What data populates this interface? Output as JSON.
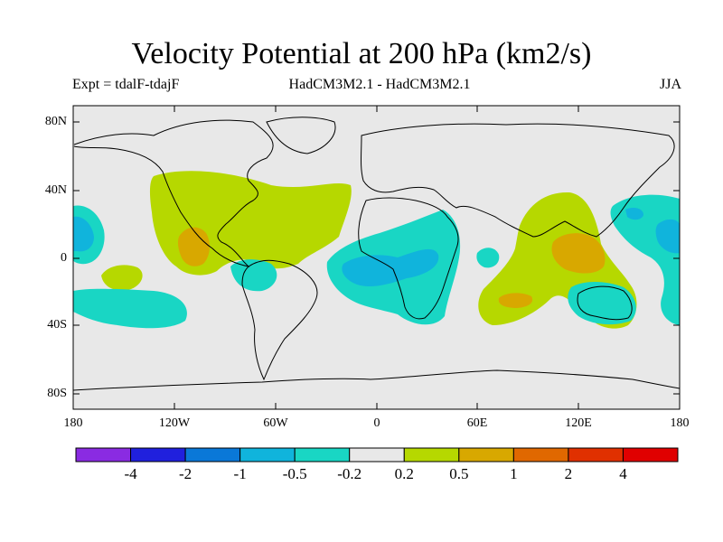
{
  "title": "Velocity Potential at 200 hPa (km2/s)",
  "experiment_label": "Expt = tdalF-tdajF",
  "model_label": "HadCM3M2.1 - HadCM3M2.1",
  "season_label": "JJA",
  "lat_ticks": [
    "80N",
    "40N",
    "0",
    "40S",
    "80S"
  ],
  "lon_ticks": [
    "180",
    "120W",
    "60W",
    "0",
    "60E",
    "120E",
    "180"
  ],
  "colorbar": {
    "labels": [
      "-4",
      "-2",
      "-1",
      "-0.5",
      "-0.2",
      "0.2",
      "0.5",
      "1",
      "2",
      "4"
    ],
    "colors": [
      "#8a2be2",
      "#2020dd",
      "#0a78d8",
      "#10b4dc",
      "#19d6c4",
      "#e8e8e8",
      "#b6d800",
      "#d8a800",
      "#e06800",
      "#e03000",
      "#e00000"
    ]
  },
  "map": {
    "background_color": "#e8e8e8",
    "outline_color": "#000000"
  }
}
